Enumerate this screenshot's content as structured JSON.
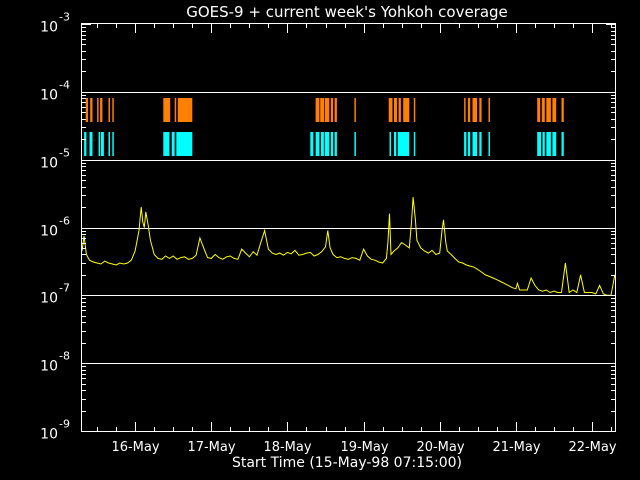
{
  "chart_data": {
    "type": "line",
    "title": "GOES-9 + current week's Yohkoh coverage",
    "xlabel": "Start Time (15-May-98 07:15:00)",
    "ylabel": "",
    "x_range_days": [
      15.302,
      22.302
    ],
    "y_log": true,
    "ylim": [
      1e-09,
      0.001
    ],
    "grid": true,
    "y_ticks": [
      {
        "value": 1e-09,
        "base": "10",
        "exp": "-9"
      },
      {
        "value": 1e-08,
        "base": "10",
        "exp": "-8"
      },
      {
        "value": 1e-07,
        "base": "10",
        "exp": "-7"
      },
      {
        "value": 1e-06,
        "base": "10",
        "exp": "-6"
      },
      {
        "value": 1e-05,
        "base": "10",
        "exp": "-5"
      },
      {
        "value": 0.0001,
        "base": "10",
        "exp": "-4"
      },
      {
        "value": 0.001,
        "base": "10",
        "exp": "-3"
      }
    ],
    "x_ticks": [
      {
        "day": 16,
        "label": "16-May"
      },
      {
        "day": 17,
        "label": "17-May"
      },
      {
        "day": 18,
        "label": "18-May"
      },
      {
        "day": 19,
        "label": "19-May"
      },
      {
        "day": 20,
        "label": "20-May"
      },
      {
        "day": 21,
        "label": "21-May"
      },
      {
        "day": 22,
        "label": "22-May"
      }
    ],
    "colors": {
      "flux": "#ffff00",
      "coverage_top": "#ff7f00",
      "coverage_bottom": "#00ffff",
      "axes": "#ffffff"
    },
    "series": [
      {
        "color": "#ffff00",
        "x": [
          15.302,
          15.33,
          15.36,
          15.4,
          15.45,
          15.5,
          15.55,
          15.6,
          15.65,
          15.7,
          15.75,
          15.8,
          15.85,
          15.9,
          15.95,
          16.0,
          16.05,
          16.08,
          16.1,
          16.12,
          16.14,
          16.17,
          16.2,
          16.25,
          16.3,
          16.35,
          16.4,
          16.45,
          16.5,
          16.55,
          16.6,
          16.65,
          16.7,
          16.75,
          16.8,
          16.85,
          16.9,
          16.95,
          17.0,
          17.05,
          17.1,
          17.15,
          17.2,
          17.25,
          17.3,
          17.35,
          17.4,
          17.45,
          17.5,
          17.55,
          17.6,
          17.65,
          17.7,
          17.75,
          17.8,
          17.85,
          17.9,
          17.95,
          18.0,
          18.05,
          18.1,
          18.15,
          18.2,
          18.25,
          18.3,
          18.35,
          18.4,
          18.45,
          18.5,
          18.53,
          18.56,
          18.6,
          18.65,
          18.7,
          18.75,
          18.8,
          18.85,
          18.9,
          18.95,
          19.0,
          19.05,
          19.1,
          19.15,
          19.2,
          19.25,
          19.3,
          19.32,
          19.34,
          19.36,
          19.4,
          19.45,
          19.5,
          19.55,
          19.6,
          19.63,
          19.65,
          19.68,
          19.7,
          19.75,
          19.8,
          19.85,
          19.9,
          19.95,
          20.0,
          20.03,
          20.05,
          20.08,
          20.1,
          20.15,
          20.2,
          20.25,
          20.3,
          20.35,
          20.4,
          20.45,
          20.5,
          20.55,
          20.6,
          20.65,
          20.7,
          20.75,
          20.8,
          20.85,
          20.9,
          20.95,
          21.0,
          21.02,
          21.05,
          21.1,
          21.15,
          21.2,
          21.25,
          21.3,
          21.35,
          21.4,
          21.45,
          21.5,
          21.55,
          21.6,
          21.65,
          21.7,
          21.75,
          21.8,
          21.85,
          21.9,
          21.95,
          22.0,
          22.05,
          22.1,
          22.15,
          22.2,
          22.25,
          22.3
        ],
        "y": [
          4.5e-07,
          7.5e-07,
          4e-07,
          3.3e-07,
          3.1e-07,
          3e-07,
          2.9e-07,
          3.2e-07,
          3e-07,
          2.9e-07,
          2.8e-07,
          3e-07,
          2.9e-07,
          3e-07,
          3.3e-07,
          4.5e-07,
          9e-07,
          2e-06,
          1.2e-06,
          1e-06,
          1.7e-06,
          1.1e-06,
          6.5e-07,
          4e-07,
          3.5e-07,
          3.4e-07,
          3.8e-07,
          3.5e-07,
          3.8e-07,
          3.4e-07,
          3.6e-07,
          3.7e-07,
          3.4e-07,
          3.5e-07,
          3.9e-07,
          7e-07,
          5e-07,
          3.6e-07,
          3.5e-07,
          4e-07,
          3.6e-07,
          3.4e-07,
          3.7e-07,
          3.8e-07,
          3.5e-07,
          3.4e-07,
          4.8e-07,
          4.2e-07,
          3.7e-07,
          4.4e-07,
          3.9e-07,
          6e-07,
          9e-07,
          4.8e-07,
          4.2e-07,
          4e-07,
          4.2e-07,
          3.9e-07,
          4.3e-07,
          4.1e-07,
          4.6e-07,
          3.9e-07,
          4e-07,
          4.2e-07,
          4.3e-07,
          3.8e-07,
          4e-07,
          4.4e-07,
          5.2e-07,
          9e-07,
          5e-07,
          4e-07,
          3.6e-07,
          3.7e-07,
          3.5e-07,
          3.4e-07,
          3.6e-07,
          3.5e-07,
          3.3e-07,
          4.8e-07,
          3.8e-07,
          3.4e-07,
          3.3e-07,
          3.1e-07,
          3e-07,
          3.5e-07,
          6e-07,
          1.6e-06,
          4e-07,
          4.5e-07,
          5e-07,
          6e-07,
          5.5e-07,
          5e-07,
          1.2e-06,
          2.8e-06,
          1.3e-06,
          6.5e-07,
          5e-07,
          4.5e-07,
          4.2e-07,
          4.6e-07,
          4e-07,
          4.2e-07,
          9e-07,
          1.3e-06,
          6e-07,
          4.5e-07,
          4e-07,
          3.5e-07,
          3.1e-07,
          3e-07,
          2.8e-07,
          2.7e-07,
          2.6e-07,
          2.4e-07,
          2.2e-07,
          2e-07,
          1.9e-07,
          1.8e-07,
          1.7e-07,
          1.6e-07,
          1.5e-07,
          1.4e-07,
          1.3e-07,
          1.25e-07,
          1.5e-07,
          1.2e-07,
          1.2e-07,
          1.2e-07,
          1.8e-07,
          1.4e-07,
          1.2e-07,
          1.15e-07,
          1.2e-07,
          1.1e-07,
          1.15e-07,
          1.1e-07,
          1.1e-07,
          3e-07,
          1.1e-07,
          1.2e-07,
          1.1e-07,
          2e-07,
          1.1e-07,
          1.1e-07,
          1.1e-07,
          1.05e-07,
          1.4e-07,
          1.05e-07,
          1e-07,
          1e-07,
          2e-07
        ]
      }
    ],
    "coverage": {
      "top_band": [
        [
          15.35,
          15.38
        ],
        [
          15.41,
          15.44
        ],
        [
          15.5,
          15.51
        ],
        [
          15.54,
          15.57
        ],
        [
          15.65,
          15.67
        ],
        [
          15.7,
          15.72
        ],
        [
          16.37,
          16.46
        ],
        [
          16.52,
          16.54
        ],
        [
          16.56,
          16.75
        ],
        [
          18.37,
          18.42
        ],
        [
          18.43,
          18.48
        ],
        [
          18.49,
          18.55
        ],
        [
          18.57,
          18.6
        ],
        [
          18.62,
          18.65
        ],
        [
          18.88,
          18.9
        ],
        [
          19.33,
          19.38
        ],
        [
          19.4,
          19.44
        ],
        [
          19.46,
          19.49
        ],
        [
          19.52,
          19.6
        ],
        [
          19.66,
          19.68
        ],
        [
          20.32,
          20.34
        ],
        [
          20.37,
          20.4
        ],
        [
          20.43,
          20.49
        ],
        [
          20.52,
          20.55
        ],
        [
          20.64,
          20.66
        ],
        [
          21.28,
          21.32
        ],
        [
          21.34,
          21.38
        ],
        [
          21.4,
          21.46
        ],
        [
          21.48,
          21.53
        ],
        [
          21.6,
          21.63
        ]
      ],
      "bottom_band": [
        [
          15.33,
          15.36
        ],
        [
          15.4,
          15.44
        ],
        [
          15.52,
          15.53
        ],
        [
          15.55,
          15.59
        ],
        [
          15.65,
          15.67
        ],
        [
          15.7,
          15.72
        ],
        [
          16.37,
          16.45
        ],
        [
          16.48,
          16.52
        ],
        [
          16.54,
          16.75
        ],
        [
          18.3,
          18.34
        ],
        [
          18.37,
          18.42
        ],
        [
          18.44,
          18.48
        ],
        [
          18.49,
          18.55
        ],
        [
          18.57,
          18.6
        ],
        [
          18.62,
          18.65
        ],
        [
          18.88,
          18.89
        ],
        [
          19.34,
          19.36
        ],
        [
          19.4,
          19.43
        ],
        [
          19.45,
          19.6
        ],
        [
          19.66,
          19.68
        ],
        [
          20.32,
          20.35
        ],
        [
          20.37,
          20.4
        ],
        [
          20.43,
          20.49
        ],
        [
          20.52,
          20.55
        ],
        [
          20.64,
          20.66
        ],
        [
          21.28,
          21.33
        ],
        [
          21.35,
          21.38
        ],
        [
          21.4,
          21.46
        ],
        [
          21.48,
          21.53
        ],
        [
          21.6,
          21.63
        ]
      ]
    }
  }
}
